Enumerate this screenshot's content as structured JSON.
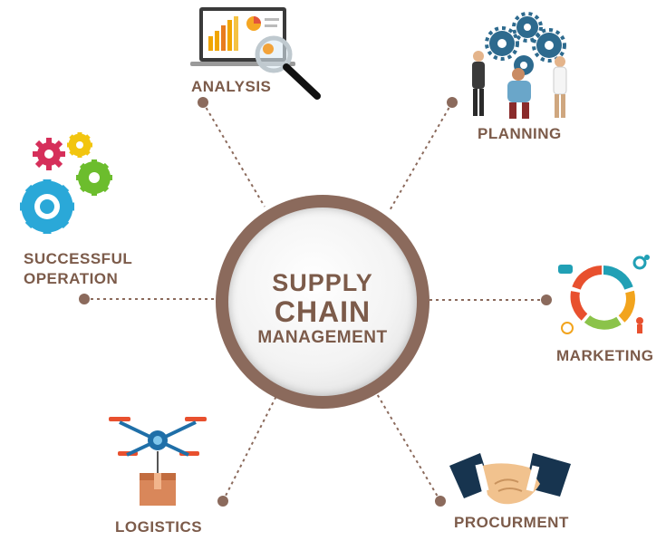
{
  "center": {
    "line1": "SUPPLY",
    "line2": "CHAIN",
    "line3": "MANAGEMENT"
  },
  "nodes": [
    {
      "id": "analysis",
      "label": "ANALYSIS",
      "icon": "laptop-analytics-icon"
    },
    {
      "id": "planning",
      "label": "PLANNING",
      "icon": "people-gears-icon"
    },
    {
      "id": "marketing",
      "label": "MARKETING",
      "icon": "marketing-cycle-icon"
    },
    {
      "id": "procurement",
      "label": "PROCURMENT",
      "icon": "handshake-icon"
    },
    {
      "id": "logistics",
      "label": "LOGISTICS",
      "icon": "drone-delivery-icon"
    },
    {
      "id": "operation",
      "label_line1": "SUCCESSFUL",
      "label_line2": "OPERATION",
      "icon": "gears-icon"
    }
  ],
  "colors": {
    "text": "#7c5b4a",
    "line": "#8b6a5c",
    "ring": "#8b6a5c"
  }
}
